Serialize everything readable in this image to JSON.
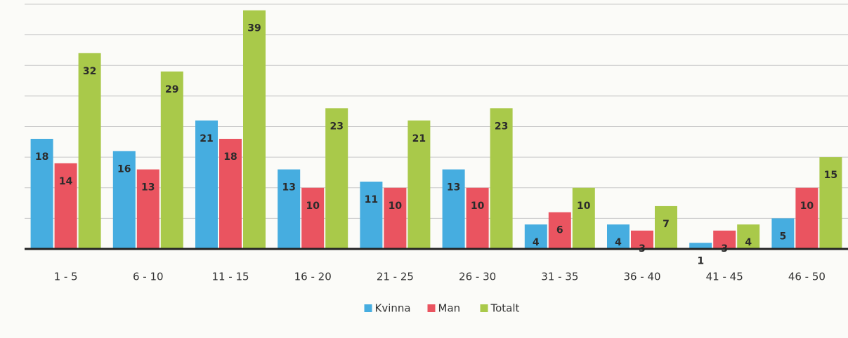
{
  "chart_data": {
    "type": "bar",
    "categories": [
      "1 - 5",
      "6 - 10",
      "11 - 15",
      "16 - 20",
      "21 - 25",
      "26 - 30",
      "31 - 35",
      "36 - 40",
      "41 - 45",
      "46 - 50"
    ],
    "series": [
      {
        "name": "Kvinna",
        "color": "#46ade0",
        "values": [
          18,
          16,
          21,
          13,
          11,
          13,
          4,
          4,
          1,
          5
        ]
      },
      {
        "name": "Man",
        "color": "#ea5460",
        "values": [
          14,
          13,
          18,
          10,
          10,
          10,
          6,
          3,
          3,
          10
        ]
      },
      {
        "name": "Totalt",
        "color": "#a9c94a",
        "values": [
          32,
          29,
          39,
          23,
          21,
          23,
          10,
          7,
          4,
          15
        ]
      }
    ],
    "ylim": [
      0,
      40
    ],
    "yticks": [
      0,
      5,
      10,
      15,
      20,
      25,
      30,
      35,
      40
    ],
    "grid": true,
    "legend": "bottom"
  }
}
